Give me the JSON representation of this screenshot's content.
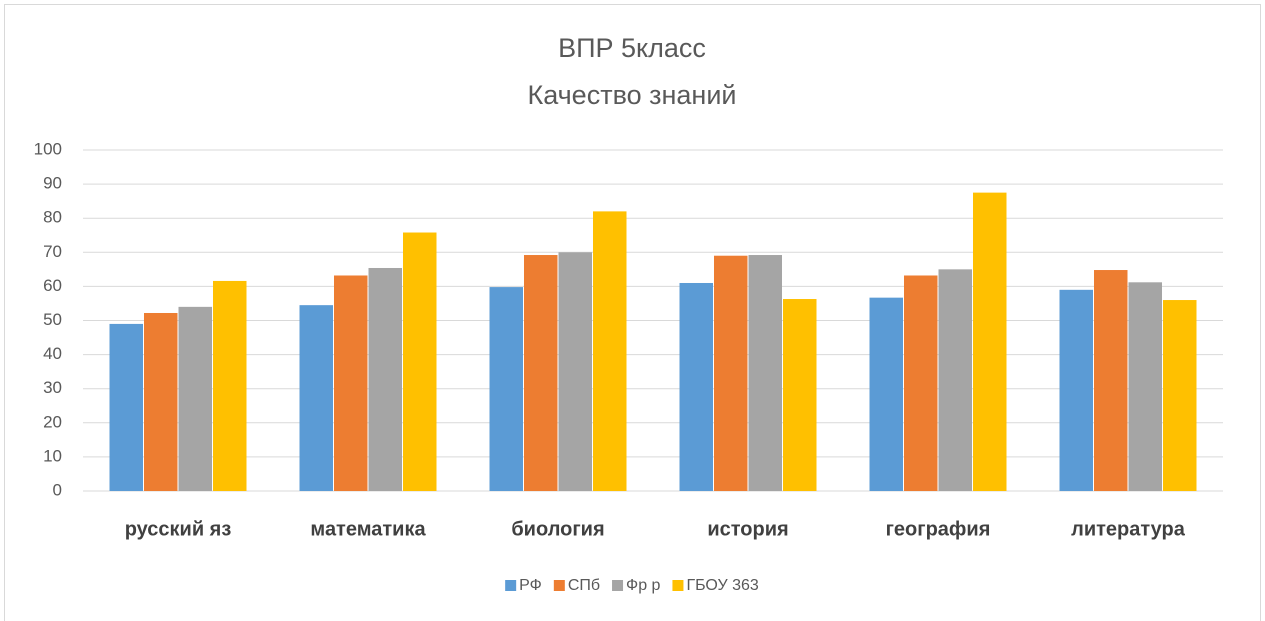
{
  "chart_data": {
    "type": "bar",
    "title": "ВПР 5класс",
    "subtitle": "Качество знаний",
    "categories": [
      "русский яз",
      "математика",
      "биология",
      "история",
      "география",
      "литература"
    ],
    "series": [
      {
        "name": "РФ",
        "color": "#5b9bd5",
        "values": [
          49.0,
          54.5,
          59.8,
          61.0,
          56.7,
          59.0
        ]
      },
      {
        "name": "СПб",
        "color": "#ed7d31",
        "values": [
          52.2,
          63.2,
          69.2,
          69.0,
          63.2,
          64.8
        ]
      },
      {
        "name": "Фр р",
        "color": "#a5a5a5",
        "values": [
          54.0,
          65.4,
          70.0,
          69.2,
          65.0,
          61.2
        ]
      },
      {
        "name": "ГБОУ 363",
        "color": "#ffc000",
        "values": [
          61.6,
          75.8,
          82.0,
          56.3,
          87.5,
          56.0
        ]
      }
    ],
    "ylim": [
      0,
      100
    ],
    "yticks": [
      0,
      10,
      20,
      30,
      40,
      50,
      60,
      70,
      80,
      90,
      100
    ],
    "grid": true,
    "legend": "bottom"
  }
}
